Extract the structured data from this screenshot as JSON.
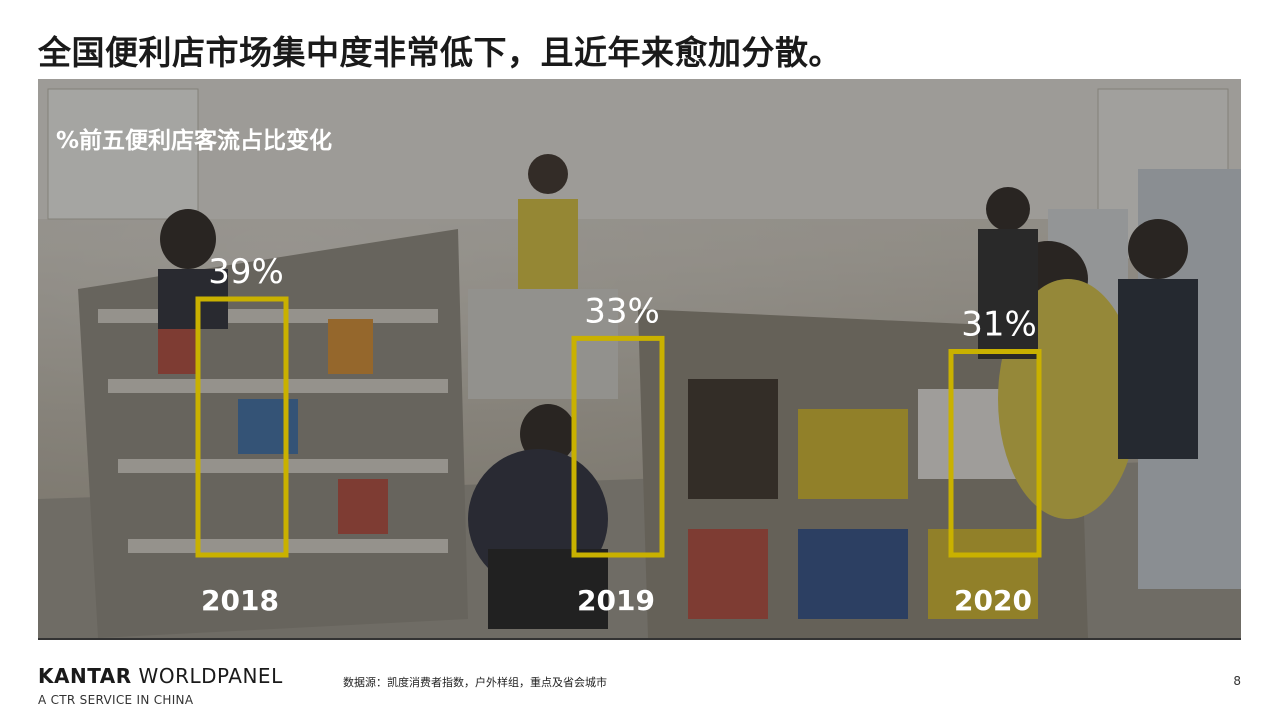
{
  "slide": {
    "title": "全国便利店市场集中度非常低下，且近年来愈加分散。",
    "page_number": "8"
  },
  "photo": {
    "icon": "convenience-store-photo"
  },
  "chart_data": {
    "type": "bar",
    "title": "%前五便利店客流占比变化",
    "categories": [
      "2018",
      "2019",
      "2020"
    ],
    "values": [
      39,
      33,
      31
    ],
    "value_labels": [
      "39%",
      "33%",
      "31%"
    ],
    "unit": "%",
    "ylim": [
      0,
      39
    ],
    "bar_style": "outlined",
    "bar_color": "#c9b100",
    "text_color": "#ffffff",
    "grid": false,
    "legend": "none"
  },
  "footer": {
    "brand_bold": "KANTAR",
    "brand_rest": " WORLDPANEL",
    "tagline": "A CTR SERVICE IN CHINA",
    "source": "数据源：凯度消费者指数，户外样组，重点及省会城市"
  }
}
